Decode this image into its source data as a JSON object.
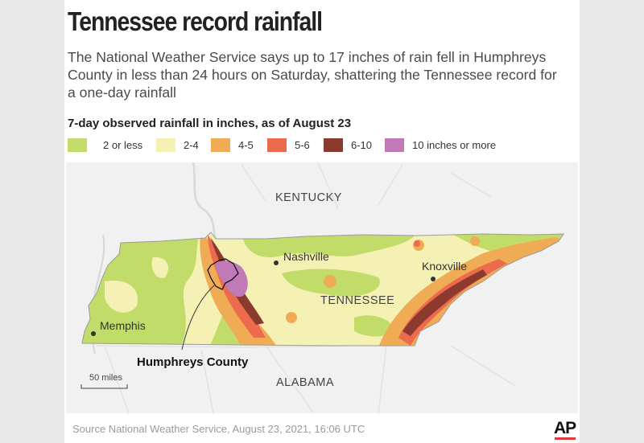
{
  "header": {
    "title": "Tennessee record rainfall",
    "subtitle": "The National Weather Service says up to 17 inches of rain fell in Humphreys County in less than 24 hours on Saturday, shattering the Tennessee record for a one-day rainfall"
  },
  "legend": {
    "title": "7-day observed rainfall in inches, as of August 23",
    "items": [
      {
        "label": "2 or less",
        "color": "#c2dc6a"
      },
      {
        "label": "2-4",
        "color": "#f5f0b4"
      },
      {
        "label": "4-5",
        "color": "#f0ac55"
      },
      {
        "label": "5-6",
        "color": "#ec6a4e"
      },
      {
        "label": "6-10",
        "color": "#8c3a2e"
      },
      {
        "label": "10 inches or more",
        "color": "#c07ab8"
      }
    ]
  },
  "map": {
    "labels": {
      "kentucky": "KENTUCKY",
      "tennessee": "TENNESSEE",
      "alabama": "ALABAMA",
      "nashville": "Nashville",
      "knoxville": "Knoxville",
      "memphis": "Memphis",
      "humphreys": "Humphreys County"
    },
    "scale_label": "50 miles"
  },
  "footer": {
    "source": "Source  National Weather Service, August 23, 2021, 16:06 UTC",
    "logo": "AP"
  }
}
